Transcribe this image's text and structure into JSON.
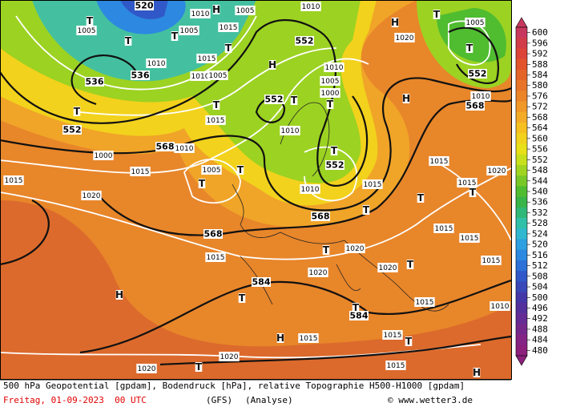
{
  "map": {
    "geopotential_labels": [
      "520",
      "536",
      "536",
      "552",
      "552",
      "552",
      "552",
      "552",
      "568",
      "568",
      "568",
      "568",
      "584",
      "584"
    ],
    "pressure_labels": [
      "1010",
      "1005",
      "1005",
      "1005",
      "1010",
      "1015",
      "1015",
      "1010",
      "1010",
      "1005",
      "1015",
      "1010",
      "1010",
      "1005",
      "1015",
      "1020",
      "1015",
      "1010",
      "1015",
      "1015",
      "1020",
      "1015",
      "1015",
      "1015",
      "1020",
      "1020",
      "1020",
      "1015",
      "1015",
      "1010",
      "1015",
      "1015",
      "1020",
      "1020",
      "1015",
      "1015",
      "1005",
      "1010",
      "1020",
      "1000",
      "1000",
      "1005",
      "1010"
    ],
    "pressure_centers": [
      "T",
      "T",
      "T",
      "H",
      "T",
      "H",
      "T",
      "T",
      "T",
      "T",
      "T",
      "T",
      "T",
      "T",
      "T",
      "T",
      "T",
      "T",
      "H",
      "T",
      "T",
      "H",
      "T",
      "T",
      "H",
      "H",
      "H",
      "T",
      "T"
    ]
  },
  "colorbar": {
    "ticks": [
      600,
      596,
      592,
      588,
      584,
      580,
      576,
      572,
      568,
      564,
      560,
      556,
      552,
      548,
      544,
      540,
      536,
      532,
      528,
      524,
      520,
      516,
      512,
      508,
      504,
      500,
      496,
      492,
      488,
      484,
      480
    ],
    "colors": [
      "#c8385e",
      "#d23c48",
      "#dc4438",
      "#e2542c",
      "#e46428",
      "#e87428",
      "#ec8428",
      "#f09828",
      "#f4ac28",
      "#f6c020",
      "#f2d21c",
      "#e8e018",
      "#c8e01c",
      "#a0d420",
      "#78c828",
      "#50bc30",
      "#38b448",
      "#30b878",
      "#30c0a8",
      "#30b8d0",
      "#2ca0e0",
      "#2c88e0",
      "#2c70d8",
      "#3058c8",
      "#3848b8",
      "#4438a8",
      "#54309c",
      "#642c94",
      "#74288c",
      "#842484",
      "#8c207c"
    ]
  },
  "footer": {
    "line1": "500 hPa Geopotential [gpdam], Bodendruck [hPa], relative Topographie H500-H1000 [gpdam]",
    "date": "Freitag, 01-09-2023  00 UTC",
    "model": "(GFS)",
    "run": "(Analyse)",
    "copyright": "© www.wetter3.de"
  }
}
